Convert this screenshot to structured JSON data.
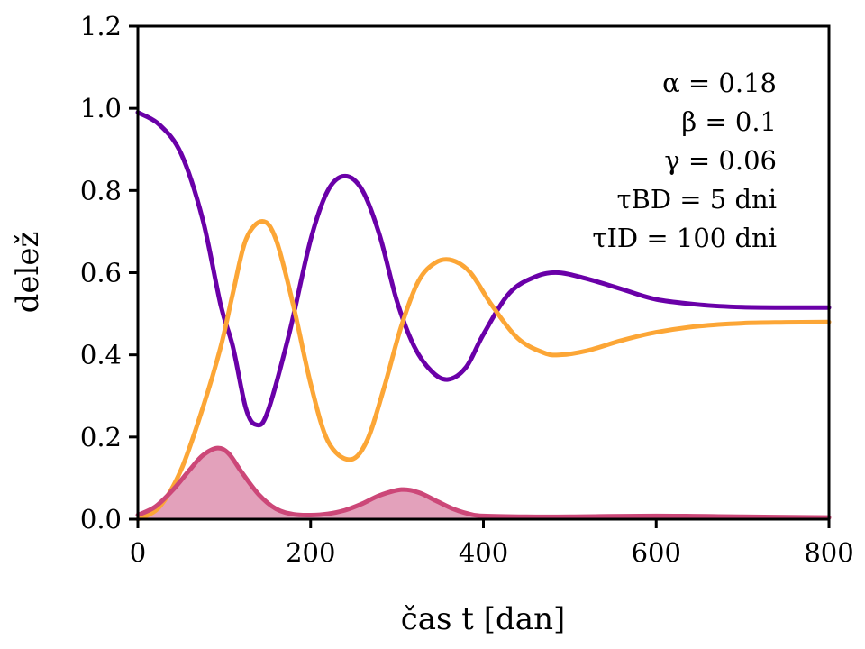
{
  "chart_data": {
    "type": "line",
    "title": "",
    "xlabel": "čas t [dan]",
    "ylabel": "delež",
    "xlim": [
      0,
      800
    ],
    "ylim": [
      0,
      1.2
    ],
    "xticks": [
      0,
      200,
      400,
      600,
      800
    ],
    "xtick_labels": [
      "0",
      "200",
      "400",
      "600",
      "800"
    ],
    "yticks": [
      0,
      0.2,
      0.4,
      0.6,
      0.8,
      1.0,
      1.2
    ],
    "ytick_labels": [
      "0.0",
      "0.2",
      "0.4",
      "0.6",
      "0.8",
      "1.0",
      "1.2"
    ],
    "grid": false,
    "annotations": [
      "α = 0.18",
      "β = 0.1",
      "γ = 0.06",
      "τBD = 5 dni",
      "τID = 100 dni"
    ],
    "annotation_placement": "top-right",
    "series": [
      {
        "name": "purple",
        "color": "#6a00a8",
        "fill": false,
        "x": [
          0,
          25,
          50,
          75,
          96,
          110,
          125,
          137,
          150,
          175,
          200,
          220,
          240,
          260,
          280,
          300,
          320,
          340,
          359,
          380,
          400,
          430,
          460,
          487,
          520,
          560,
          600,
          650,
          700,
          750,
          800
        ],
        "y": [
          0.99,
          0.96,
          0.89,
          0.73,
          0.52,
          0.42,
          0.27,
          0.23,
          0.26,
          0.45,
          0.68,
          0.8,
          0.835,
          0.8,
          0.69,
          0.53,
          0.42,
          0.36,
          0.34,
          0.37,
          0.45,
          0.55,
          0.59,
          0.6,
          0.585,
          0.56,
          0.535,
          0.522,
          0.516,
          0.515,
          0.515
        ]
      },
      {
        "name": "orange",
        "color": "#fca636",
        "fill": false,
        "x": [
          0,
          25,
          50,
          75,
          96,
          110,
          125,
          144,
          160,
          180,
          200,
          220,
          245,
          265,
          285,
          305,
          325,
          345,
          364,
          385,
          410,
          440,
          470,
          489,
          520,
          560,
          600,
          650,
          700,
          750,
          800
        ],
        "y": [
          0.0,
          0.03,
          0.12,
          0.27,
          0.42,
          0.55,
          0.68,
          0.725,
          0.68,
          0.52,
          0.33,
          0.19,
          0.145,
          0.19,
          0.32,
          0.47,
          0.58,
          0.625,
          0.63,
          0.6,
          0.52,
          0.44,
          0.405,
          0.4,
          0.41,
          0.435,
          0.455,
          0.47,
          0.477,
          0.479,
          0.48
        ]
      },
      {
        "name": "pink",
        "color": "#cc4778",
        "fill": true,
        "fill_color": "#e3a1bb",
        "x": [
          0,
          20,
          40,
          60,
          75,
          92,
          105,
          120,
          140,
          160,
          180,
          200,
          220,
          240,
          260,
          280,
          305,
          325,
          345,
          365,
          385,
          400,
          450,
          500,
          600,
          700,
          800
        ],
        "y": [
          0.01,
          0.03,
          0.07,
          0.12,
          0.155,
          0.173,
          0.16,
          0.115,
          0.06,
          0.025,
          0.012,
          0.01,
          0.013,
          0.022,
          0.038,
          0.058,
          0.072,
          0.065,
          0.045,
          0.025,
          0.012,
          0.008,
          0.006,
          0.006,
          0.008,
          0.006,
          0.004
        ]
      }
    ]
  }
}
